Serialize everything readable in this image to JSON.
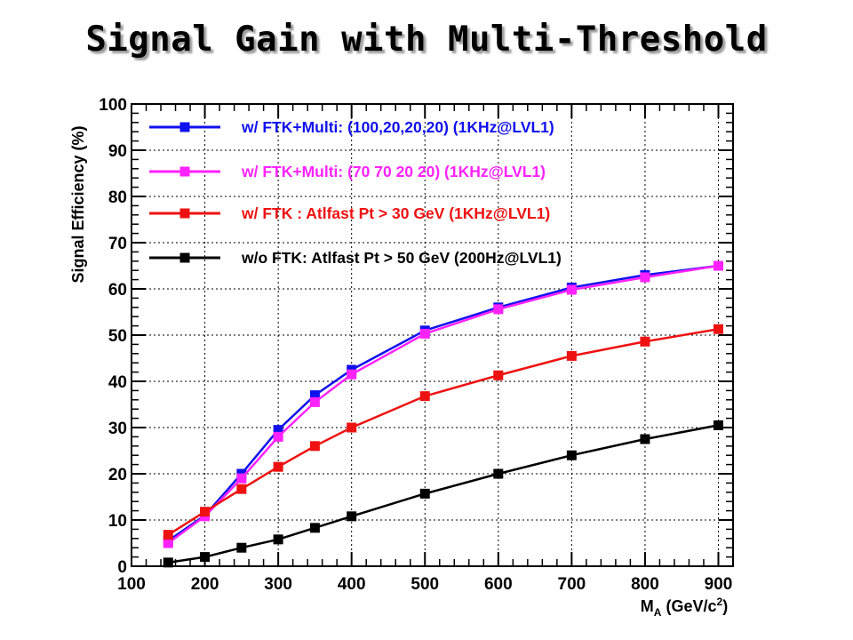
{
  "slide": {
    "title": "Signal Gain with Multi-Threshold"
  },
  "chart_data": {
    "type": "line",
    "title": "",
    "xlabel": "M",
    "xlabel_sub": "A",
    "xlabel_unit_pre": " (GeV/c",
    "xlabel_unit_sup": "2",
    "xlabel_unit_post": ")",
    "ylabel": "Signal Efficiency (%)",
    "xlim": [
      100,
      920
    ],
    "ylim": [
      0,
      100
    ],
    "xticks": [
      100,
      200,
      300,
      400,
      500,
      600,
      700,
      800,
      900
    ],
    "yticks": [
      0,
      10,
      20,
      30,
      40,
      50,
      60,
      70,
      80,
      90,
      100
    ],
    "grid": true,
    "legend_position": "top-left",
    "series": [
      {
        "name": "w/ FTK+Multi: (100,20,20,20) (1KHz@LVL1)",
        "color": "#1010ee",
        "x": [
          150,
          200,
          250,
          300,
          350,
          400,
          500,
          600,
          700,
          800,
          900
        ],
        "values": [
          5.5,
          11.0,
          20.0,
          29.5,
          37.0,
          42.5,
          51.0,
          56.0,
          60.3,
          63.0,
          65.0
        ]
      },
      {
        "name": "w/ FTK+Multi: (70 70 20 20) (1KHz@LVL1)",
        "color": "#ff22ff",
        "x": [
          150,
          200,
          250,
          300,
          350,
          400,
          500,
          600,
          700,
          800,
          900
        ],
        "values": [
          5.0,
          10.8,
          19.0,
          28.0,
          35.5,
          41.5,
          50.3,
          55.6,
          59.8,
          62.5,
          65.0
        ]
      },
      {
        "name": "w/ FTK : Atlfast Pt > 30 GeV (1KHz@LVL1)",
        "color": "#ee1111",
        "x": [
          150,
          200,
          250,
          300,
          350,
          400,
          500,
          600,
          700,
          800,
          900
        ],
        "values": [
          6.8,
          11.8,
          16.7,
          21.5,
          26.0,
          30.0,
          36.8,
          41.3,
          45.5,
          48.6,
          51.3
        ]
      },
      {
        "name": "w/o FTK:  Atlfast Pt > 50 GeV (200Hz@LVL1)",
        "color": "#000000",
        "x": [
          150,
          200,
          250,
          300,
          350,
          400,
          500,
          600,
          700,
          800,
          900
        ],
        "values": [
          0.8,
          2.0,
          4.0,
          5.8,
          8.3,
          10.8,
          15.7,
          20.0,
          24.0,
          27.5,
          30.5
        ]
      }
    ]
  }
}
